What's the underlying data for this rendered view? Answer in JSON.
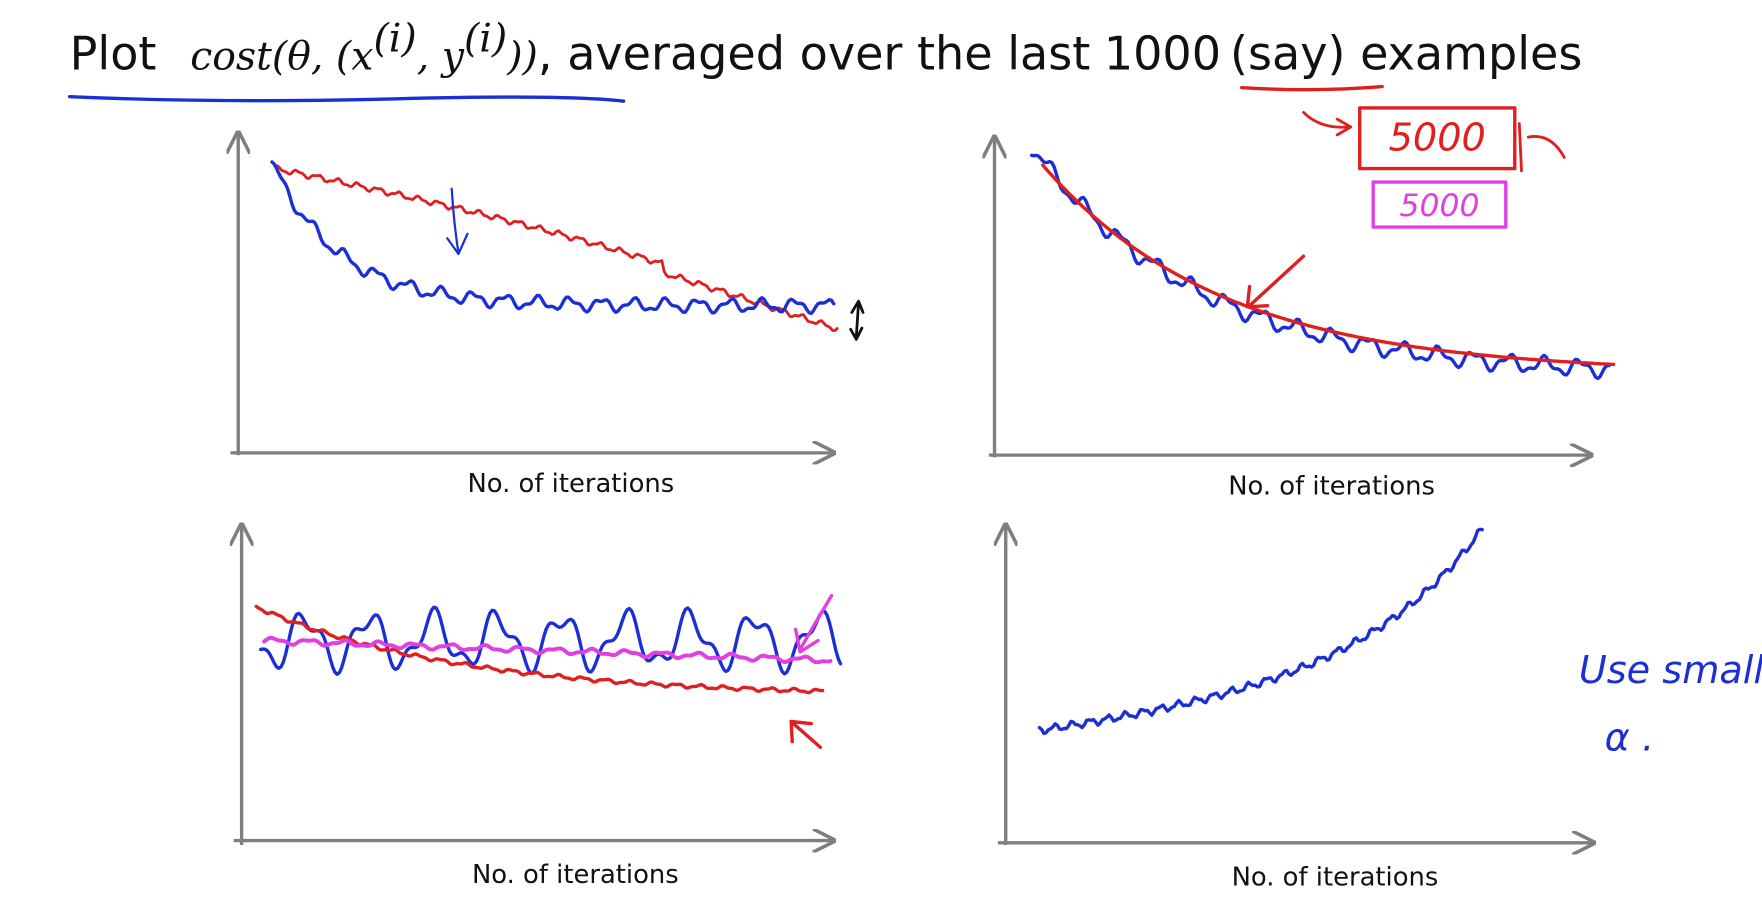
{
  "title": {
    "prefix": "Plot",
    "formula": [
      "cost(θ, (x",
      "(i)",
      ", y",
      "(i)",
      "))"
    ],
    "middle": ", averaged over the last",
    "number": "1000",
    "suffix": "(say) examples"
  },
  "panels": [
    {
      "x_label": "No. of iterations"
    },
    {
      "x_label": "No. of iterations"
    },
    {
      "x_label": "No. of iterations"
    },
    {
      "x_label": "No. of iterations"
    }
  ],
  "annotations": {
    "red_box": "5000",
    "magenta_box": "5000",
    "note": [
      "Use smaller",
      "α ."
    ]
  }
}
